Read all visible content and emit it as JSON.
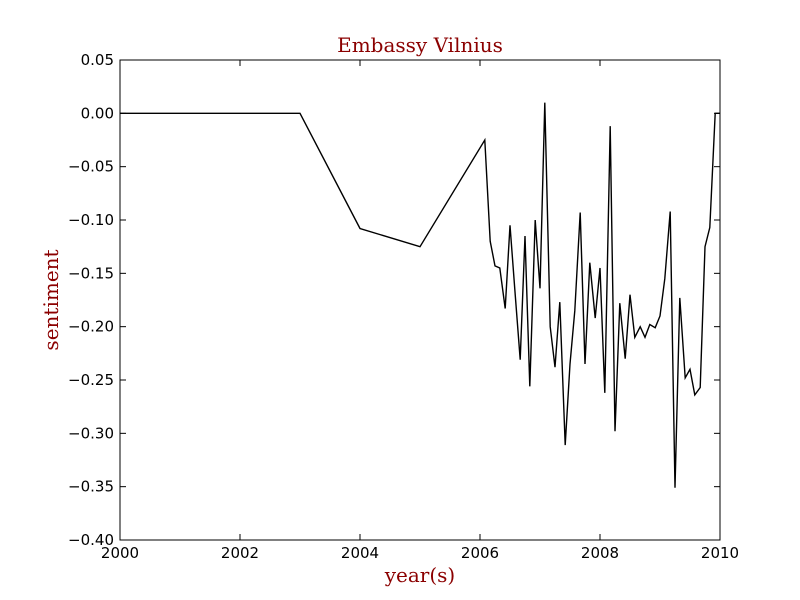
{
  "chart_data": {
    "type": "line",
    "title": "Embassy Vilnius",
    "xlabel": "year(s)",
    "ylabel": "sentiment",
    "xlim": [
      2000,
      2010
    ],
    "ylim": [
      -0.4,
      0.05
    ],
    "x_ticks": [
      2000,
      2002,
      2004,
      2006,
      2008,
      2010
    ],
    "x_tick_labels": [
      "2000",
      "2002",
      "2004",
      "2006",
      "2008",
      "2010"
    ],
    "y_ticks": [
      0.05,
      0.0,
      -0.05,
      -0.1,
      -0.15,
      -0.2,
      -0.25,
      -0.3,
      -0.35,
      -0.4
    ],
    "y_tick_labels": [
      "0.05",
      "0.00",
      "−0.05",
      "−0.10",
      "−0.15",
      "−0.20",
      "−0.25",
      "−0.30",
      "−0.35",
      "−0.40"
    ],
    "grid": false,
    "title_color": "#8b0000",
    "label_color": "#8b0000",
    "line_color": "#000000",
    "series": [
      {
        "points": [
          [
            2000.0,
            0.0
          ],
          [
            2003.0,
            0.0
          ],
          [
            2004.0,
            -0.108
          ],
          [
            2005.0,
            -0.125
          ],
          [
            2006.08,
            -0.025
          ],
          [
            2006.17,
            -0.12
          ],
          [
            2006.25,
            -0.143
          ],
          [
            2006.33,
            -0.145
          ],
          [
            2006.42,
            -0.183
          ],
          [
            2006.5,
            -0.105
          ],
          [
            2006.58,
            -0.165
          ],
          [
            2006.67,
            -0.231
          ],
          [
            2006.75,
            -0.115
          ],
          [
            2006.83,
            -0.256
          ],
          [
            2006.92,
            -0.1
          ],
          [
            2007.0,
            -0.164
          ],
          [
            2007.08,
            0.01
          ],
          [
            2007.17,
            -0.2
          ],
          [
            2007.25,
            -0.238
          ],
          [
            2007.33,
            -0.177
          ],
          [
            2007.42,
            -0.311
          ],
          [
            2007.5,
            -0.235
          ],
          [
            2007.58,
            -0.185
          ],
          [
            2007.67,
            -0.093
          ],
          [
            2007.75,
            -0.235
          ],
          [
            2007.83,
            -0.14
          ],
          [
            2007.92,
            -0.192
          ],
          [
            2008.0,
            -0.145
          ],
          [
            2008.08,
            -0.262
          ],
          [
            2008.17,
            -0.012
          ],
          [
            2008.25,
            -0.298
          ],
          [
            2008.33,
            -0.178
          ],
          [
            2008.42,
            -0.23
          ],
          [
            2008.5,
            -0.17
          ],
          [
            2008.58,
            -0.21
          ],
          [
            2008.67,
            -0.2
          ],
          [
            2008.75,
            -0.21
          ],
          [
            2008.83,
            -0.198
          ],
          [
            2008.92,
            -0.201
          ],
          [
            2009.0,
            -0.19
          ],
          [
            2009.08,
            -0.155
          ],
          [
            2009.17,
            -0.092
          ],
          [
            2009.25,
            -0.351
          ],
          [
            2009.33,
            -0.173
          ],
          [
            2009.42,
            -0.248
          ],
          [
            2009.5,
            -0.24
          ],
          [
            2009.58,
            -0.264
          ],
          [
            2009.67,
            -0.257
          ],
          [
            2009.75,
            -0.125
          ],
          [
            2009.83,
            -0.107
          ],
          [
            2009.92,
            0.0
          ],
          [
            2010.0,
            0.0
          ]
        ]
      }
    ]
  }
}
